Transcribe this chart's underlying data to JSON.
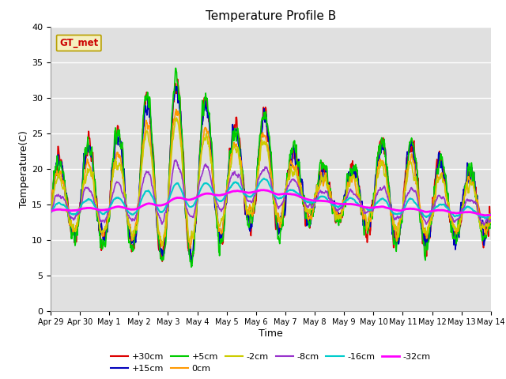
{
  "title": "Temperature Profile B",
  "xlabel": "Time",
  "ylabel": "Temperature(C)",
  "xlim": [
    0,
    15
  ],
  "ylim": [
    0,
    40
  ],
  "x_ticks": [
    0,
    1,
    2,
    3,
    4,
    5,
    6,
    7,
    8,
    9,
    10,
    11,
    12,
    13,
    14,
    15
  ],
  "x_tick_labels": [
    "Apr 29",
    "Apr 30",
    "May 1",
    "May 2",
    "May 3",
    "May 4",
    "May 5",
    "May 6",
    "May 7",
    "May 8",
    "May 9",
    "May 10",
    "May 11",
    "May 12",
    "May 13",
    "May 14"
  ],
  "yticks": [
    0,
    5,
    10,
    15,
    20,
    25,
    30,
    35,
    40
  ],
  "bg_color": "#e0e0e0",
  "legend_label": "GT_met",
  "legend_text_color": "#cc0000",
  "legend_box_face": "#f5f0c0",
  "legend_box_edge": "#b8a000",
  "series_labels": [
    "+30cm",
    "+15cm",
    "+5cm",
    "0cm",
    "-2cm",
    "-8cm",
    "-16cm",
    "-32cm"
  ],
  "series_colors": [
    "#dd0000",
    "#0000bb",
    "#00cc00",
    "#ff9900",
    "#cccc00",
    "#9933cc",
    "#00cccc",
    "#ff00ff"
  ],
  "series_widths": [
    1.2,
    1.2,
    1.2,
    1.2,
    1.2,
    1.2,
    1.5,
    2.0
  ]
}
